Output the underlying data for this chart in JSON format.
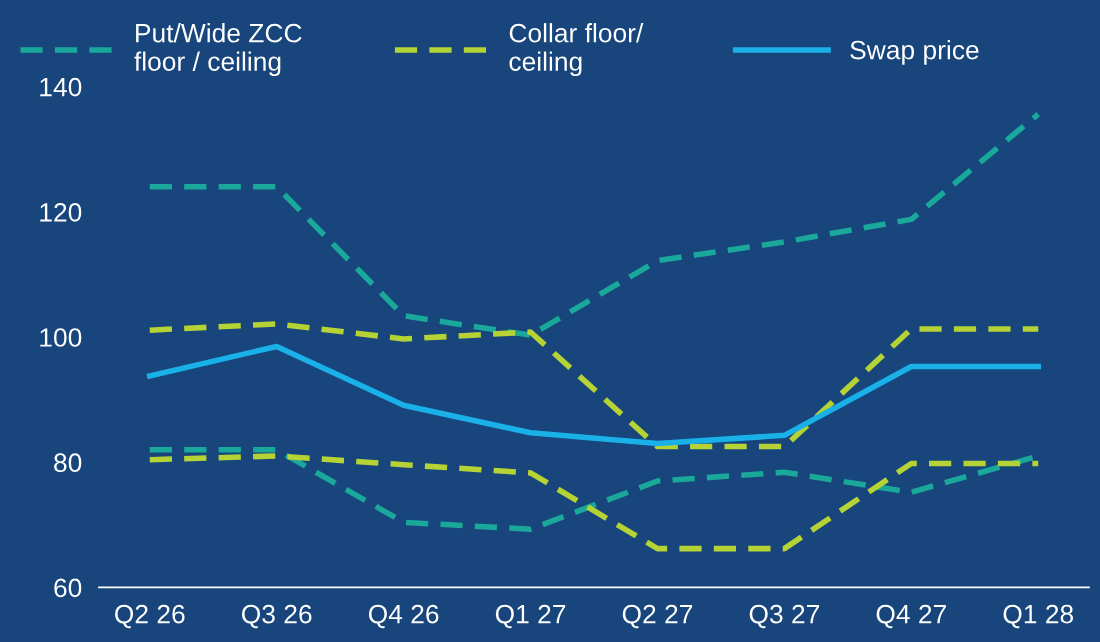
{
  "chart_data": {
    "type": "line",
    "categories": [
      "Q2 26",
      "Q3 26",
      "Q4 26",
      "Q1 27",
      "Q2 27",
      "Q3 27",
      "Q4 27",
      "Q1 28"
    ],
    "series": [
      {
        "name": "Put/Wide ZCC\nfloor / ceiling",
        "color": "#1aa89a",
        "line_style": "dashed",
        "values": [
          124,
          124,
          103.4,
          100.3,
          112.2,
          115.2,
          118.8,
          135.6
        ]
      },
      {
        "color": "#1aa89a",
        "line_style": "dashed",
        "values": [
          82,
          82,
          70.4,
          69.3,
          77,
          78.4,
          75.2,
          81
        ]
      },
      {
        "name": "Collar floor/\nceiling",
        "color": "#b5d334",
        "line_style": "dashed",
        "values": [
          101.1,
          102.1,
          99.7,
          100.8,
          82.5,
          82.5,
          101.3,
          101.3
        ]
      },
      {
        "color": "#b5d334",
        "line_style": "dashed",
        "values": [
          80.4,
          81,
          79.6,
          78.3,
          66.2,
          66.2,
          79.8,
          79.8
        ]
      },
      {
        "name": "Swap price",
        "color": "#1ab0e8",
        "line_style": "solid",
        "values": [
          93.8,
          98.5,
          89.1,
          84.7,
          83,
          84.3,
          95.3,
          95.3
        ]
      }
    ],
    "ylim": [
      60,
      140
    ],
    "yticks": [
      60,
      80,
      100,
      120,
      140
    ],
    "grid": false,
    "legend": "top",
    "marker": "none"
  }
}
